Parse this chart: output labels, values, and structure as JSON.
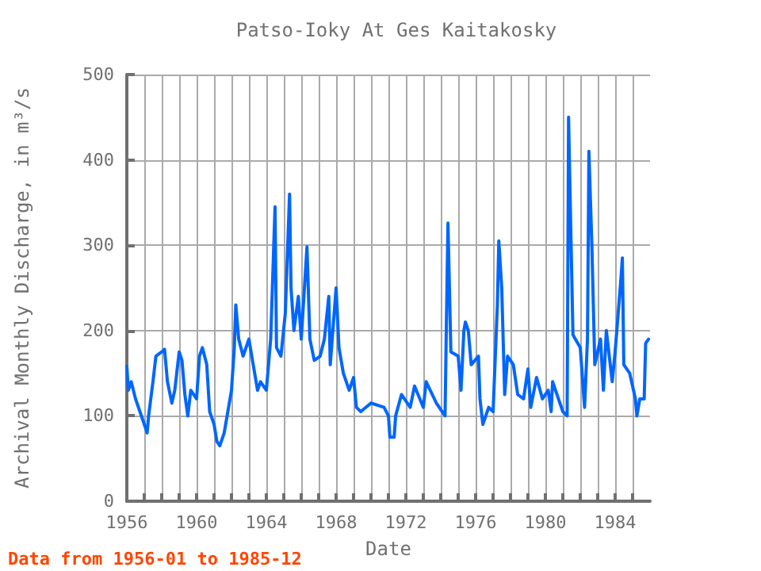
{
  "chart_data": {
    "type": "line",
    "title": "Patso-Ioky At Ges Kaitakosky",
    "xlabel": "Date",
    "ylabel": "Archival Monthly Discharge, in m³/s",
    "annotations": [
      "Data from 1956-01 to 1985-12"
    ],
    "x": [
      "1956-01",
      "1956-02",
      "1956-04",
      "1956-07",
      "1956-10",
      "1957-02",
      "1957-03",
      "1957-04",
      "1957-07",
      "1957-09",
      "1958-01",
      "1958-03",
      "1958-05",
      "1958-08",
      "1958-10",
      "1959-01",
      "1959-03",
      "1959-05",
      "1959-07",
      "1959-09",
      "1960-01",
      "1960-03",
      "1960-05",
      "1960-08",
      "1960-10",
      "1961-01",
      "1961-03",
      "1961-05",
      "1961-08",
      "1961-10",
      "1962-01",
      "1962-03",
      "1962-04",
      "1962-06",
      "1962-09",
      "1963-01",
      "1963-04",
      "1963-07",
      "1963-09",
      "1964-01",
      "1964-04",
      "1964-07",
      "1964-08",
      "1964-11",
      "1965-02",
      "1965-05",
      "1965-06",
      "1965-08",
      "1965-11",
      "1966-01",
      "1966-05",
      "1966-07",
      "1966-10",
      "1967-02",
      "1967-05",
      "1967-08",
      "1967-09",
      "1968-01",
      "1968-03",
      "1968-06",
      "1968-10",
      "1969-01",
      "1969-03",
      "1969-06",
      "1970-01",
      "1970-10",
      "1971-01",
      "1971-02",
      "1971-05",
      "1971-06",
      "1971-10",
      "1972-04",
      "1972-07",
      "1973-01",
      "1973-03",
      "1973-10",
      "1974-04",
      "1974-05",
      "1974-06",
      "1974-08",
      "1975-01",
      "1975-03",
      "1975-05",
      "1975-06",
      "1975-08",
      "1975-10",
      "1976-03",
      "1976-04",
      "1976-06",
      "1976-10",
      "1977-01",
      "1977-04",
      "1977-05",
      "1977-07",
      "1977-09",
      "1977-11",
      "1978-03",
      "1978-06",
      "1978-10",
      "1979-01",
      "1979-03",
      "1979-07",
      "1979-11",
      "1980-03",
      "1980-05",
      "1980-06",
      "1980-10",
      "1981-01",
      "1981-04",
      "1981-05",
      "1981-06",
      "1981-08",
      "1982-01",
      "1982-04",
      "1982-06",
      "1982-07",
      "1982-09",
      "1982-11",
      "1983-03",
      "1983-05",
      "1983-07",
      "1983-11",
      "1984-01",
      "1984-05",
      "1984-06",
      "1984-07",
      "1984-11",
      "1985-03",
      "1985-04",
      "1985-06",
      "1985-09",
      "1985-10",
      "1985-12"
    ],
    "series": [
      {
        "color": "#0066ff",
        "values": [
          158,
          130,
          140,
          120,
          105,
          85,
          80,
          100,
          140,
          170,
          175,
          178,
          140,
          115,
          130,
          175,
          165,
          125,
          100,
          130,
          120,
          170,
          180,
          160,
          105,
          90,
          70,
          65,
          80,
          100,
          130,
          180,
          230,
          190,
          170,
          190,
          160,
          130,
          140,
          130,
          190,
          345,
          180,
          170,
          220,
          360,
          250,
          200,
          240,
          190,
          298,
          190,
          165,
          170,
          190,
          240,
          160,
          250,
          180,
          150,
          130,
          145,
          110,
          105,
          115,
          110,
          100,
          75,
          75,
          100,
          125,
          110,
          135,
          110,
          140,
          115,
          100,
          215,
          326,
          175,
          170,
          130,
          200,
          210,
          200,
          160,
          170,
          120,
          90,
          110,
          105,
          230,
          305,
          250,
          125,
          170,
          160,
          125,
          120,
          155,
          110,
          145,
          120,
          130,
          105,
          140,
          120,
          105,
          100,
          450,
          360,
          195,
          180,
          110,
          190,
          410,
          300,
          160,
          190,
          130,
          200,
          140,
          175,
          260,
          285,
          160,
          150,
          120,
          100,
          120,
          120,
          185,
          190
        ]
      }
    ],
    "xlim": [
      "1956",
      "1986"
    ],
    "xticks": [
      {
        "value": "1956",
        "label": "1956"
      },
      {
        "value": "1957",
        "label": null
      },
      {
        "value": "1958",
        "label": null
      },
      {
        "value": "1959",
        "label": null
      },
      {
        "value": "1960",
        "label": "1960"
      },
      {
        "value": "1961",
        "label": null
      },
      {
        "value": "1962",
        "label": null
      },
      {
        "value": "1963",
        "label": null
      },
      {
        "value": "1964",
        "label": "1964"
      },
      {
        "value": "1965",
        "label": null
      },
      {
        "value": "1966",
        "label": null
      },
      {
        "value": "1967",
        "label": null
      },
      {
        "value": "1968",
        "label": "1968"
      },
      {
        "value": "1969",
        "label": null
      },
      {
        "value": "1970",
        "label": null
      },
      {
        "value": "1971",
        "label": null
      },
      {
        "value": "1972",
        "label": "1972"
      },
      {
        "value": "1973",
        "label": null
      },
      {
        "value": "1974",
        "label": null
      },
      {
        "value": "1975",
        "label": null
      },
      {
        "value": "1976",
        "label": "1976"
      },
      {
        "value": "1977",
        "label": null
      },
      {
        "value": "1978",
        "label": null
      },
      {
        "value": "1979",
        "label": null
      },
      {
        "value": "1980",
        "label": "1980"
      },
      {
        "value": "1981",
        "label": null
      },
      {
        "value": "1982",
        "label": null
      },
      {
        "value": "1983",
        "label": null
      },
      {
        "value": "1984",
        "label": "1984"
      },
      {
        "value": "1985",
        "label": null
      }
    ],
    "ylim": [
      0,
      500
    ],
    "yticks": [
      0,
      100,
      200,
      300,
      400,
      500
    ],
    "grid": true,
    "marker": "none",
    "line_style": "solid"
  }
}
